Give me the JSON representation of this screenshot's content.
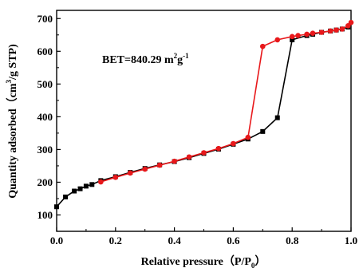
{
  "chart_data": {
    "type": "line",
    "xlabel": {
      "main": "Relative pressure（P/P",
      "sub": "0",
      "close": "）"
    },
    "ylabel": {
      "pre": "Quantity adsorbed（cm",
      "sup": "3",
      "post": "/g STP)"
    },
    "annotation": {
      "pre": "BET=840.29 m",
      "sup1": "2",
      "mid": "g",
      "sup2": "-1"
    },
    "xlim": [
      0.0,
      1.0
    ],
    "ylim": [
      50,
      725
    ],
    "xticks": [
      "0.0",
      "0.2",
      "0.4",
      "0.6",
      "0.8",
      "1.0"
    ],
    "yticks": [
      "100",
      "200",
      "300",
      "400",
      "500",
      "600",
      "700"
    ],
    "grid": false,
    "legend": "none",
    "series": [
      {
        "color": "#000000",
        "marker": "square",
        "x": [
          0.0,
          0.03,
          0.06,
          0.08,
          0.1,
          0.12,
          0.15,
          0.2,
          0.25,
          0.3,
          0.35,
          0.4,
          0.45,
          0.5,
          0.55,
          0.6,
          0.65,
          0.7,
          0.75,
          0.8,
          0.85,
          0.87,
          0.9,
          0.93,
          0.95,
          0.97,
          0.99
        ],
        "y": [
          125,
          155,
          173,
          180,
          188,
          193,
          205,
          217,
          230,
          242,
          253,
          263,
          275,
          288,
          301,
          316,
          332,
          355,
          397,
          635,
          648,
          652,
          658,
          662,
          665,
          668,
          674
        ]
      },
      {
        "color": "#e8181b",
        "marker": "circle",
        "x": [
          0.15,
          0.2,
          0.25,
          0.3,
          0.35,
          0.4,
          0.45,
          0.5,
          0.55,
          0.6,
          0.65,
          0.7,
          0.75,
          0.8,
          0.82,
          0.85,
          0.87,
          0.9,
          0.93,
          0.95,
          0.97,
          0.99,
          1.0
        ],
        "y": [
          201,
          215,
          228,
          240,
          252,
          264,
          277,
          290,
          303,
          318,
          337,
          615,
          635,
          645,
          648,
          652,
          655,
          658,
          662,
          665,
          668,
          678,
          688
        ]
      }
    ]
  }
}
